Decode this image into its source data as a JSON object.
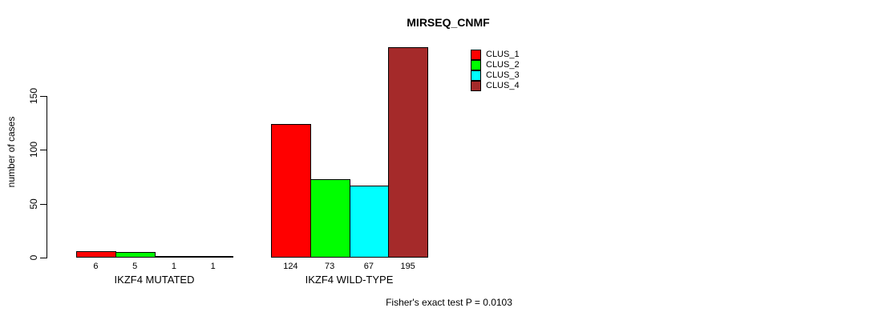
{
  "chart_data": {
    "type": "bar",
    "title": "MIRSEQ_CNMF",
    "xlabel": "",
    "ylabel": "number of cases",
    "ylim": [
      0,
      150
    ],
    "yticks": [
      0,
      50,
      100,
      150
    ],
    "grid": false,
    "legend_position": "inside-top-right",
    "categories": [
      "IKZF4 MUTATED",
      "IKZF4 WILD-TYPE"
    ],
    "series": [
      {
        "name": "CLUS_1",
        "color": "#FF0000",
        "values": [
          6,
          124
        ]
      },
      {
        "name": "CLUS_2",
        "color": "#00FF00",
        "values": [
          5,
          73
        ]
      },
      {
        "name": "CLUS_3",
        "color": "#00FFFF",
        "values": [
          1,
          67
        ]
      },
      {
        "name": "CLUS_4",
        "color": "#A52A2A",
        "values": [
          1,
          195
        ]
      }
    ],
    "bar_labels": [
      [
        6,
        5,
        1,
        1
      ],
      [
        124,
        73,
        67,
        195
      ]
    ],
    "annotation": "Fisher's exact test P = 0.0103"
  }
}
